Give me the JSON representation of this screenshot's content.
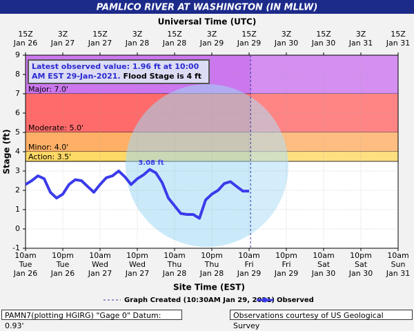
{
  "chart_data": {
    "type": "line",
    "title": "PAMLICO RIVER AT WASHINGTON (IN MLLW)",
    "x2_label": "Universal Time (UTC)",
    "x_label": "Site Time (EST)",
    "y_label": "Stage (ft)",
    "info": {
      "latest": "Latest observed value: 1.96 ft at 10:00 AM EST 29-Jan-2021.",
      "flood_stage": "Flood Stage is 4 ft"
    },
    "annotations": [
      "3.08 ft"
    ],
    "footer_left": "PAMN7(plotting HGIRG) \"Gage 0\" Datum: 0.93'",
    "footer_right": "Observations courtesy of US Geological Survey",
    "xlim": [
      "2021-01-26T10:00",
      "2021-01-31T10:00"
    ],
    "ylim": [
      -1,
      9
    ],
    "yticks": [
      -1,
      0,
      1,
      2,
      3,
      4,
      5,
      6,
      7,
      8,
      9
    ],
    "grid": true,
    "xticks": [
      {
        "value": "2021-01-26T10:00",
        "label": "10am\nTue\nJan 26"
      },
      {
        "value": "2021-01-26T22:00",
        "label": "10pm\nTue\nJan 26"
      },
      {
        "value": "2021-01-27T10:00",
        "label": "10am\nWed\nJan 27"
      },
      {
        "value": "2021-01-27T22:00",
        "label": "10pm\nWed\nJan 27"
      },
      {
        "value": "2021-01-28T10:00",
        "label": "10am\nThu\nJan 28"
      },
      {
        "value": "2021-01-28T22:00",
        "label": "10pm\nThu\nJan 28"
      },
      {
        "value": "2021-01-29T10:00",
        "label": "10am\nFri\nJan 29"
      },
      {
        "value": "2021-01-29T22:00",
        "label": "10pm\nFri\nJan 29"
      },
      {
        "value": "2021-01-30T10:00",
        "label": "10am\nSat\nJan 30"
      },
      {
        "value": "2021-01-30T22:00",
        "label": "10pm\nSat\nJan 30"
      },
      {
        "value": "2021-01-31T10:00",
        "label": "10am\nSun\nJan 31"
      }
    ],
    "x2ticks": [
      {
        "value": "2021-01-26T10:00",
        "label": "15Z\nJan 26"
      },
      {
        "value": "2021-01-26T22:00",
        "label": "3Z\nJan 27"
      },
      {
        "value": "2021-01-27T10:00",
        "label": "15Z\nJan 27"
      },
      {
        "value": "2021-01-27T22:00",
        "label": "3Z\nJan 28"
      },
      {
        "value": "2021-01-28T10:00",
        "label": "15Z\nJan 28"
      },
      {
        "value": "2021-01-28T22:00",
        "label": "3Z\nJan 29"
      },
      {
        "value": "2021-01-29T10:00",
        "label": "15Z\nJan 29"
      },
      {
        "value": "2021-01-29T22:00",
        "label": "3Z\nJan 30"
      },
      {
        "value": "2021-01-30T10:00",
        "label": "15Z\nJan 30"
      },
      {
        "value": "2021-01-30T22:00",
        "label": "3Z\nJan 31"
      },
      {
        "value": "2021-01-31T10:00",
        "label": "15Z\nJan 31"
      }
    ],
    "flood_categories": [
      {
        "label": "Major: 7.0'",
        "value": 7,
        "color": "#ff6b6b"
      },
      {
        "label": "Moderate: 5.0'",
        "value": 5,
        "color": "#ffb066"
      },
      {
        "label": "Minor: 4.0'",
        "value": 4,
        "color": "#ffd966"
      },
      {
        "label": "Action: 3.5'",
        "value": 3.5,
        "color": "#ffff00"
      }
    ],
    "above_major_color": "#cc77ee",
    "graph_created": {
      "label": "Graph Created (10:30AM Jan 29, 2021)",
      "x": "2021-01-29T10:30",
      "color": "#3333aa"
    },
    "series": [
      {
        "name": "Observed",
        "color": "#3b3bea",
        "x": [
          "2021-01-26T10:00",
          "2021-01-26T12:00",
          "2021-01-26T14:00",
          "2021-01-26T16:00",
          "2021-01-26T18:00",
          "2021-01-26T20:00",
          "2021-01-26T22:00",
          "2021-01-27T00:00",
          "2021-01-27T02:00",
          "2021-01-27T04:00",
          "2021-01-27T06:00",
          "2021-01-27T08:00",
          "2021-01-27T10:00",
          "2021-01-27T12:00",
          "2021-01-27T14:00",
          "2021-01-27T16:00",
          "2021-01-27T18:00",
          "2021-01-27T20:00",
          "2021-01-27T22:00",
          "2021-01-28T00:00",
          "2021-01-28T02:00",
          "2021-01-28T04:00",
          "2021-01-28T06:00",
          "2021-01-28T08:00",
          "2021-01-28T10:00",
          "2021-01-28T12:00",
          "2021-01-28T14:00",
          "2021-01-28T16:00",
          "2021-01-28T18:00",
          "2021-01-28T20:00",
          "2021-01-28T22:00",
          "2021-01-29T00:00",
          "2021-01-29T02:00",
          "2021-01-29T04:00",
          "2021-01-29T06:00",
          "2021-01-29T08:00",
          "2021-01-29T10:00"
        ],
        "values": [
          2.3,
          2.5,
          2.75,
          2.6,
          1.9,
          1.6,
          1.8,
          2.3,
          2.55,
          2.5,
          2.2,
          1.9,
          2.3,
          2.65,
          2.75,
          3.0,
          2.7,
          2.3,
          2.6,
          2.8,
          3.08,
          2.9,
          2.4,
          1.6,
          1.2,
          0.8,
          0.75,
          0.75,
          0.55,
          1.5,
          1.8,
          2.0,
          2.35,
          2.45,
          2.2,
          1.96,
          1.96
        ]
      }
    ]
  }
}
